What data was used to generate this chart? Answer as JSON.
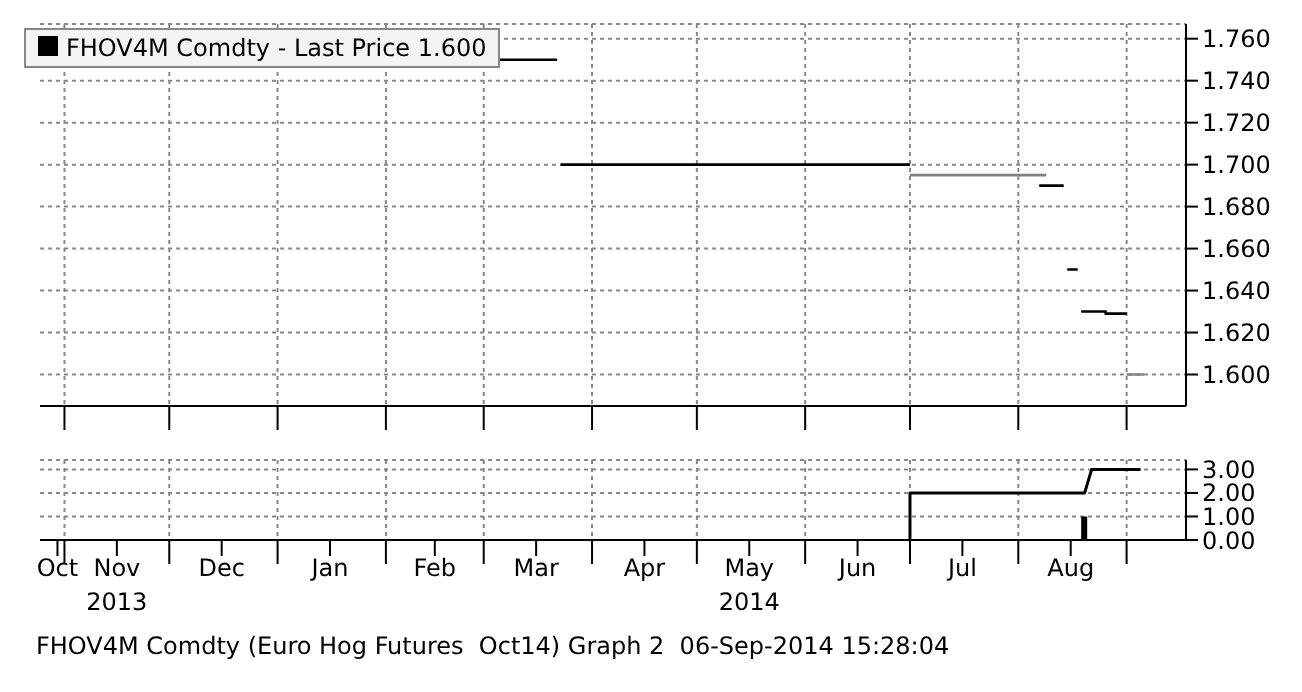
{
  "chart_data": [
    {
      "type": "step",
      "xlim": [
        "2013-10-25",
        "2014-09-18"
      ],
      "ylim": [
        1.585,
        1.767
      ],
      "xticks": [
        {
          "value": "2013-11-01",
          "label": null
        },
        {
          "value": "2013-12-01",
          "label": null
        },
        {
          "value": "2014-01-01",
          "label": null
        },
        {
          "value": "2014-02-01",
          "label": null
        },
        {
          "value": "2014-03-01",
          "label": null
        },
        {
          "value": "2014-04-01",
          "label": null
        },
        {
          "value": "2014-05-01",
          "label": null
        },
        {
          "value": "2014-06-01",
          "label": null
        },
        {
          "value": "2014-07-01",
          "label": null
        },
        {
          "value": "2014-08-01",
          "label": null
        },
        {
          "value": "2014-09-01",
          "label": null
        }
      ],
      "yticks": [
        {
          "value": 1.6,
          "label": "1.600"
        },
        {
          "value": 1.62,
          "label": "1.620"
        },
        {
          "value": 1.64,
          "label": "1.640"
        },
        {
          "value": 1.66,
          "label": "1.660"
        },
        {
          "value": 1.68,
          "label": "1.680"
        },
        {
          "value": 1.7,
          "label": "1.700"
        },
        {
          "value": 1.72,
          "label": "1.720"
        },
        {
          "value": 1.74,
          "label": "1.740"
        },
        {
          "value": 1.76,
          "label": "1.760"
        }
      ],
      "tick_labels": "y",
      "grid": true,
      "legend": "top left",
      "series": [
        {
          "name": "FHOV4M Comdty - Last Price 1.600",
          "color": "#000000",
          "x": [
            "2013-10-25",
            "2014-03-22",
            "2014-03-22T12:00",
            "2014-03-23",
            "2014-07-01",
            "2014-07-02",
            "2014-08-07",
            "2014-08-14",
            "2014-08-14T12:00",
            "2014-08-15",
            "2014-08-18",
            "2014-08-18T12:00",
            "2014-08-19",
            "2014-08-25",
            "2014-08-26",
            "2014-09-01"
          ],
          "values": [
            1.75,
            1.75,
            null,
            1.7,
            1.7,
            null,
            1.69,
            1.69,
            null,
            1.65,
            1.65,
            null,
            1.63,
            1.63,
            1.629,
            1.629
          ]
        },
        {
          "color": "#808080",
          "x": [
            "2014-07-01",
            "2014-08-09",
            "2014-08-10",
            "2014-09-01",
            "2014-09-06"
          ],
          "values": [
            1.695,
            1.695,
            null,
            1.6,
            1.6
          ]
        }
      ]
    },
    {
      "type": "line",
      "xlim": [
        "2013-10-25",
        "2014-09-18"
      ],
      "ylim": [
        0,
        3.4
      ],
      "xticks": [
        {
          "value": "2013-10-30",
          "label": "Oct"
        },
        {
          "value": "2013-11-01",
          "label": null
        },
        {
          "value": "2013-11-16",
          "label": "Nov\n2013"
        },
        {
          "value": "2013-12-01",
          "label": null
        },
        {
          "value": "2013-12-16",
          "label": "Dec"
        },
        {
          "value": "2014-01-01",
          "label": null
        },
        {
          "value": "2014-01-16",
          "label": "Jan"
        },
        {
          "value": "2014-02-01",
          "label": null
        },
        {
          "value": "2014-02-15",
          "label": "Feb"
        },
        {
          "value": "2014-03-01",
          "label": null
        },
        {
          "value": "2014-03-16",
          "label": "Mar"
        },
        {
          "value": "2014-04-01",
          "label": null
        },
        {
          "value": "2014-04-16",
          "label": "Apr"
        },
        {
          "value": "2014-05-01",
          "label": null
        },
        {
          "value": "2014-05-16",
          "label": "May\n2014"
        },
        {
          "value": "2014-06-01",
          "label": null
        },
        {
          "value": "2014-06-16",
          "label": "Jun"
        },
        {
          "value": "2014-07-01",
          "label": null
        },
        {
          "value": "2014-07-16",
          "label": "Jul"
        },
        {
          "value": "2014-08-01",
          "label": null
        },
        {
          "value": "2014-08-16",
          "label": "Aug"
        },
        {
          "value": "2014-09-01",
          "label": null
        }
      ],
      "yticks": [
        {
          "value": 0,
          "label": "0.00"
        },
        {
          "value": 1,
          "label": "1.00"
        },
        {
          "value": 2,
          "label": "2.00"
        },
        {
          "value": 3,
          "label": "3.00"
        }
      ],
      "grid": true,
      "series": [
        {
          "color": "#000000",
          "x": [
            "2014-07-01",
            "2014-07-01",
            "2014-08-20",
            "2014-08-22",
            "2014-09-05"
          ],
          "values": [
            0,
            2,
            2,
            3,
            3
          ]
        },
        {
          "type": "bar",
          "color": "#000000",
          "x": [
            "2014-08-20"
          ],
          "values": [
            1
          ]
        }
      ],
      "annotations": [
        "FHOV4M Comdty (Euro Hog Futures  Oct14) Graph 2  06-Sep-2014 15:28:04"
      ]
    }
  ]
}
